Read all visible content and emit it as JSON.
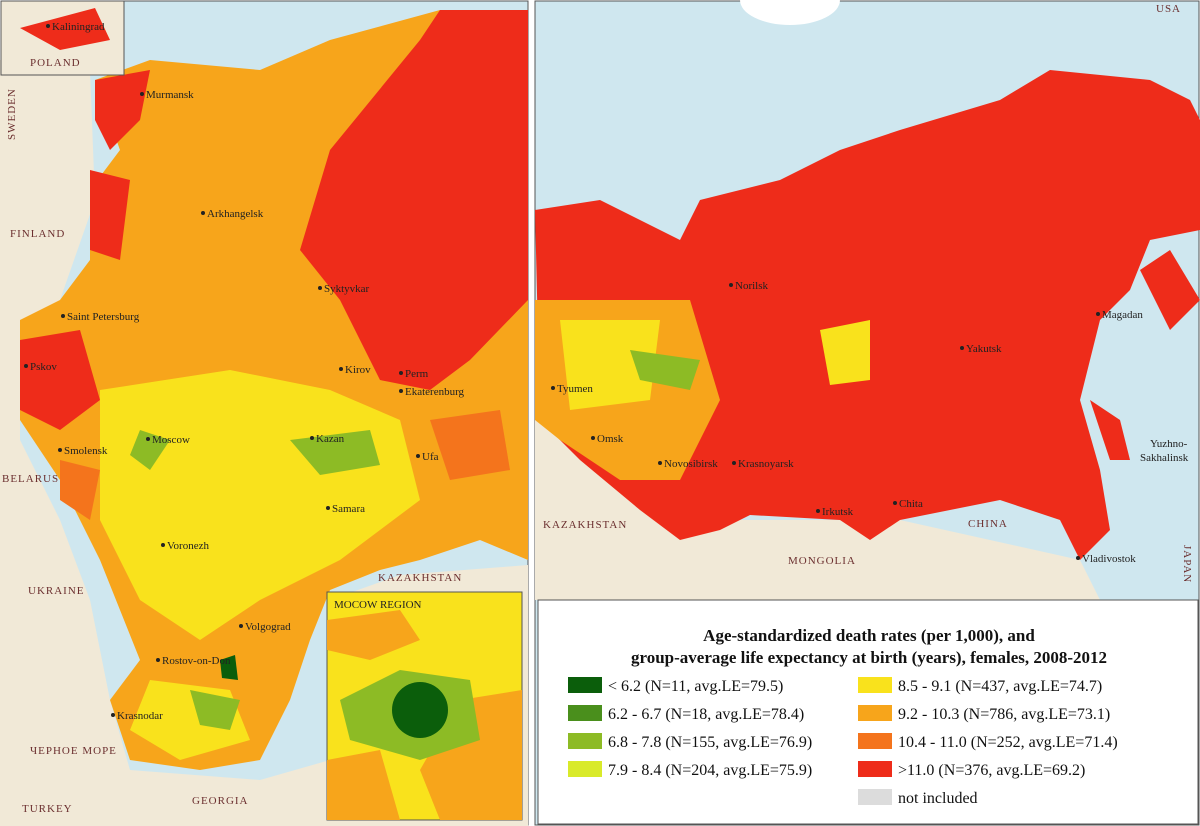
{
  "left_map": {
    "kaliningrad_inset": {
      "city": "Kaliningrad",
      "country": "POLAND"
    },
    "cities": [
      "Murmansk",
      "Arkhangelsk",
      "Syktyvkar",
      "Saint Petersburg",
      "Pskov",
      "Kirov",
      "Perm",
      "Ekaterenburg",
      "Moscow",
      "Kazan",
      "Smolensk",
      "Ufa",
      "Samara",
      "Voronezh",
      "Volgograd",
      "Rostov-on-Don",
      "Krasnodar"
    ],
    "countries": [
      "SWEDEN",
      "FINLAND",
      "BELARUS",
      "KAZAKHSTAN",
      "UKRAINE",
      "TURKEY",
      "GEORGIA"
    ],
    "sea": "ЧЕРНОЕ МОРЕ",
    "moscow_inset_title": "MOCOW REGION"
  },
  "right_map": {
    "cities": [
      "Norilsk",
      "Magadan",
      "Yakutsk",
      "Tyumen",
      "Omsk",
      "Novosibirsk",
      "Krasnoyarsk",
      "Irkutsk",
      "Chita",
      "Vladivostok"
    ],
    "two_line_city": [
      "Yuzhno-",
      "Sakhalinsk"
    ],
    "countries": [
      "USA",
      "KAZAKHSTAN",
      "CHINA",
      "MONGOLIA",
      "JAPAN"
    ]
  },
  "legend": {
    "title": [
      "Age-standardized death rates (per 1,000), and",
      "group-average life expectancy at birth (years), females, 2008-2012"
    ],
    "items": [
      {
        "label": "< 6.2 (N=11, avg.LE=79.5)",
        "color": "#0b5e0b"
      },
      {
        "label": "6.2 - 6.7 (N=18, avg.LE=78.4)",
        "color": "#4a8f1c"
      },
      {
        "label": "6.8 - 7.8 (N=155, avg.LE=76.9)",
        "color": "#8dbb25"
      },
      {
        "label": "7.9 - 8.4 (N=204, avg.LE=75.9)",
        "color": "#d9ea2a"
      },
      {
        "label": "8.5 - 9.1 (N=437, avg.LE=74.7)",
        "color": "#f9e21c"
      },
      {
        "label": "9.2 - 10.3 (N=786, avg.LE=73.1)",
        "color": "#f7a51b"
      },
      {
        "label": "10.4 - 11.0 (N=252, avg.LE=71.4)",
        "color": "#f4741c"
      },
      {
        "label": ">11.0 (N=376, avg.LE=69.2)",
        "color": "#ee2c1a"
      },
      {
        "label": "not included",
        "color": "#dcdcdc"
      }
    ]
  }
}
